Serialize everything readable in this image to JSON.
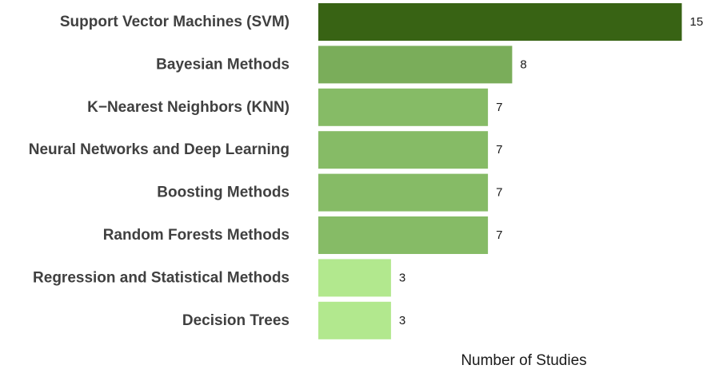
{
  "chart_data": {
    "type": "bar",
    "orientation": "horizontal",
    "categories": [
      "Support Vector Machines (SVM)",
      "Bayesian Methods",
      "K−Nearest Neighbors (KNN)",
      "Neural Networks and Deep Learning",
      "Boosting Methods",
      "Random Forests Methods",
      "Regression and Statistical Methods",
      "Decision Trees"
    ],
    "values": [
      15,
      8,
      7,
      7,
      7,
      7,
      3,
      3
    ],
    "data_labels": [
      "15",
      "8",
      "7",
      "7",
      "7",
      "7",
      "3",
      "3"
    ],
    "xlabel": "Number of Studies",
    "ylabel": "",
    "title": "",
    "xlim": [
      0,
      15
    ],
    "grid": false,
    "legend": "none",
    "colors": {
      "15": "#386314",
      "8": "#7aad5a",
      "7": "#86bb66",
      "3": "#b2e88e"
    }
  }
}
